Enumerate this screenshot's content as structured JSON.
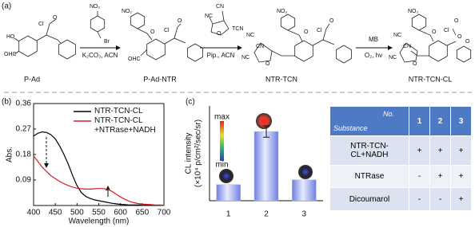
{
  "scheme": {
    "panel_label": "(a)",
    "compounds": [
      {
        "name": "P-Ad",
        "atoms": [
          "Cl",
          "O",
          "HO",
          "OHC"
        ]
      },
      {
        "name": "P-Ad-NTR",
        "atoms": [
          "NO₂",
          "O",
          "Cl",
          "O",
          "OHC"
        ]
      },
      {
        "name": "NTR-TCN",
        "atoms": [
          "NO₂",
          "O",
          "Cl",
          "O",
          "NC",
          "CN",
          "NC",
          "O"
        ]
      },
      {
        "name": "NTR-TCN-CL",
        "atoms": [
          "NO₂",
          "O",
          "Cl",
          "O",
          "O",
          "O",
          "NC",
          "CN",
          "NC",
          "O"
        ]
      }
    ],
    "reagents": [
      {
        "atoms": [
          "NO₂",
          "Br"
        ],
        "conditions": "K₂CO₃, ACN"
      },
      {
        "atoms": [
          "CN",
          "NC",
          "O",
          "TCN"
        ],
        "conditions": "Pip., ACN"
      },
      {
        "label": "MB",
        "conditions": "O₂, hν"
      }
    ]
  },
  "chart_data": [
    {
      "type": "line",
      "panel_label": "(b)",
      "xlabel": "Wavelength (nm)",
      "ylabel": "Abs.",
      "x": [
        400,
        410,
        420,
        430,
        440,
        450,
        460,
        470,
        480,
        490,
        500,
        510,
        520,
        530,
        540,
        550,
        560,
        570,
        580,
        590,
        600,
        610,
        620,
        630,
        640,
        650,
        660,
        670,
        680,
        690,
        700
      ],
      "series": [
        {
          "name": "NTR-TCN-CL",
          "color": "#000000",
          "values": [
            0.245,
            0.255,
            0.26,
            0.258,
            0.25,
            0.235,
            0.21,
            0.18,
            0.145,
            0.105,
            0.07,
            0.045,
            0.032,
            0.025,
            0.02,
            0.017,
            0.014,
            0.011,
            0.008,
            0.006,
            0.004,
            0.003,
            0.002,
            0.002,
            0.002,
            0.002,
            0.001,
            0.001,
            0.001,
            0.001,
            0.001
          ]
        },
        {
          "name": "NTR-TCN-CL +NTRase+NADH",
          "color": "#d42020",
          "values": [
            0.175,
            0.155,
            0.135,
            0.12,
            0.105,
            0.095,
            0.085,
            0.077,
            0.07,
            0.065,
            0.061,
            0.059,
            0.058,
            0.058,
            0.059,
            0.06,
            0.06,
            0.057,
            0.05,
            0.04,
            0.03,
            0.022,
            0.015,
            0.01,
            0.007,
            0.005,
            0.004,
            0.003,
            0.002,
            0.002,
            0.001
          ]
        }
      ],
      "xlim": [
        400,
        700
      ],
      "xticks": [
        400,
        450,
        500,
        550,
        600,
        650,
        700
      ],
      "ylim": [
        0,
        0.36
      ],
      "yticks": [
        0.09,
        0.18,
        0.27,
        0.36
      ],
      "legend": "top-right"
    },
    {
      "type": "bar",
      "panel_label": "(c)",
      "ylabel": [
        "CL intensity",
        "(×10⁴ p/cm²/sec/sr)"
      ],
      "categories": [
        "1",
        "2",
        "3"
      ],
      "values": [
        1.7,
        7.3,
        2.2
      ],
      "errors": [
        null,
        0.6,
        null
      ],
      "color": "#a9b6f2",
      "ylim": [
        0,
        10
      ],
      "colorbar_labels": [
        "max",
        "min"
      ]
    }
  ],
  "table": {
    "corner_col": "No.",
    "corner_row": "Substance",
    "columns": [
      "1",
      "2",
      "3"
    ],
    "rows": [
      {
        "label": "NTR-TCN-CL+NADH",
        "cells": [
          "+",
          "+",
          "+"
        ]
      },
      {
        "label": "NTRase",
        "cells": [
          "-",
          "+",
          "+"
        ]
      },
      {
        "label": "Dicoumarol",
        "cells": [
          "-",
          "-",
          "+"
        ]
      }
    ]
  }
}
